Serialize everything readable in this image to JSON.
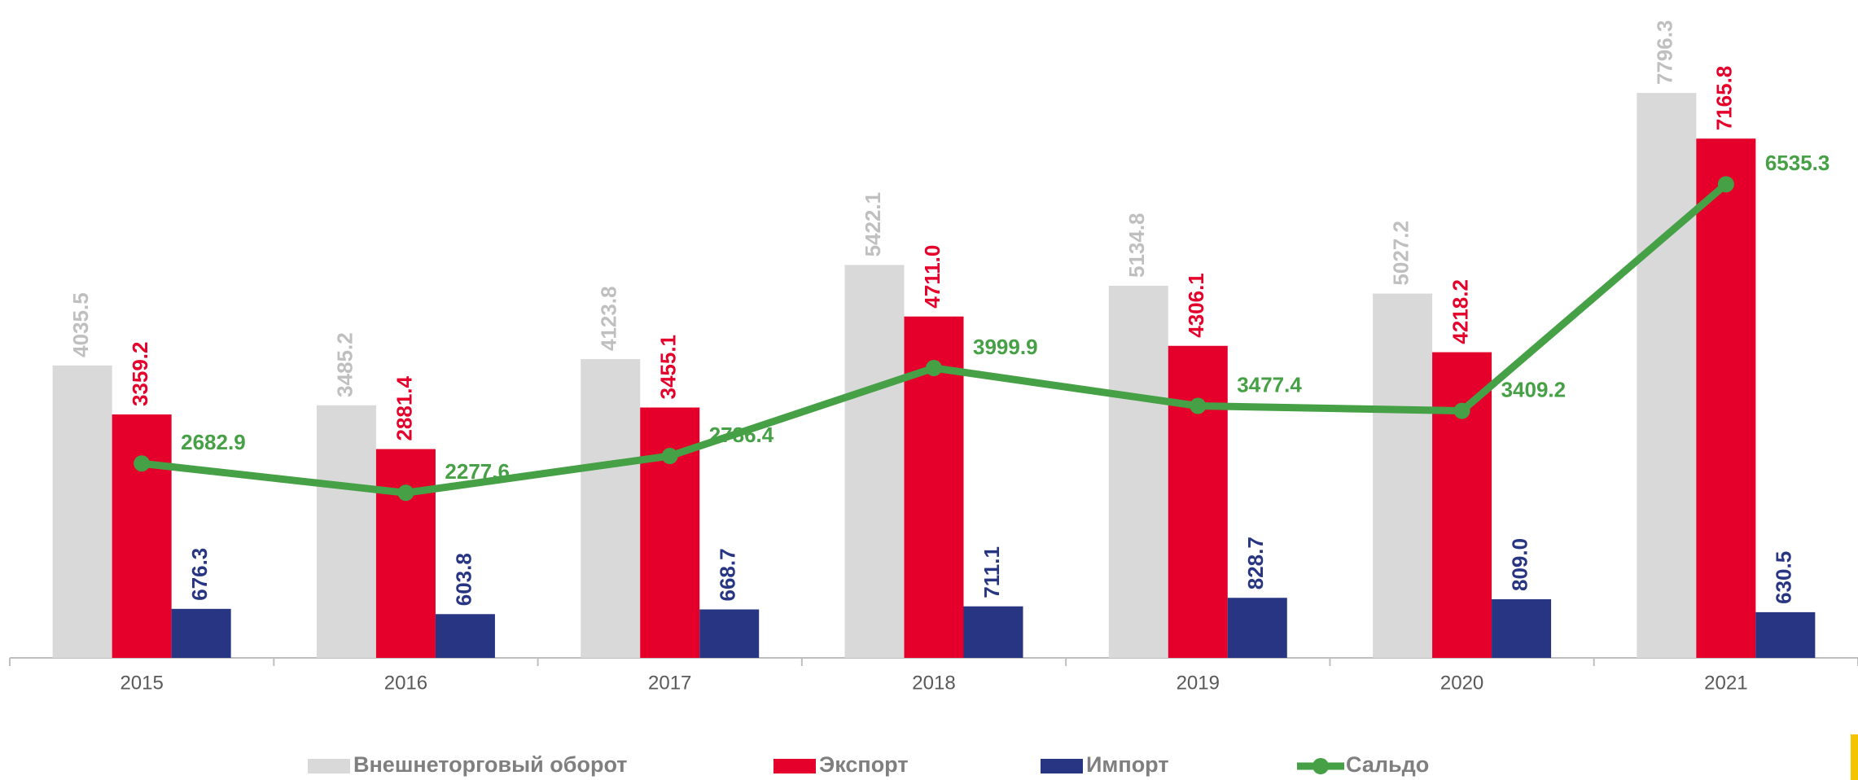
{
  "chart_data": {
    "type": "bar_line",
    "categories": [
      "2015",
      "2016",
      "2017",
      "2018",
      "2019",
      "2020",
      "2021"
    ],
    "series": [
      {
        "name": "Внешнеторговый оборот",
        "color": "#d9d9d9",
        "type": "bar",
        "label_color": "#bfbfbf",
        "values": [
          4035.5,
          3485.2,
          4123.8,
          5422.1,
          5134.8,
          5027.2,
          7796.3
        ],
        "value_labels": [
          "4035.5",
          "3485.2",
          "4123.8",
          "5422.1",
          "5134.8",
          "5027.2",
          "7796.3"
        ]
      },
      {
        "name": "Экспорт",
        "color": "#e4002b",
        "type": "bar",
        "label_color": "#e4002b",
        "values": [
          3359.2,
          2881.4,
          3455.1,
          4711.0,
          4306.1,
          4218.2,
          7165.8
        ],
        "value_labels": [
          "3359.2",
          "2881.4",
          "3455.1",
          "4711.0",
          "4306.1",
          "4218.2",
          "7165.8"
        ]
      },
      {
        "name": "Импорт",
        "color": "#283583",
        "type": "bar",
        "label_color": "#283583",
        "values": [
          676.3,
          603.8,
          668.7,
          711.1,
          828.7,
          809.0,
          630.5
        ],
        "value_labels": [
          "676.3",
          "603.8",
          "668.7",
          "711.1",
          "828.7",
          "809.0",
          "630.5"
        ]
      },
      {
        "name": "Сальдо",
        "color": "#46a046",
        "type": "line",
        "label_color": "#46a046",
        "values": [
          2682.9,
          2277.6,
          2786.4,
          3999.9,
          3477.4,
          3409.2,
          6535.3
        ],
        "value_labels": [
          "2682.9",
          "2277.6",
          "2786.4",
          "3999.9",
          "3477.4",
          "3409.2",
          "6535.3"
        ]
      }
    ],
    "ylim": [
      0,
      9000
    ],
    "legend": "bottom"
  }
}
